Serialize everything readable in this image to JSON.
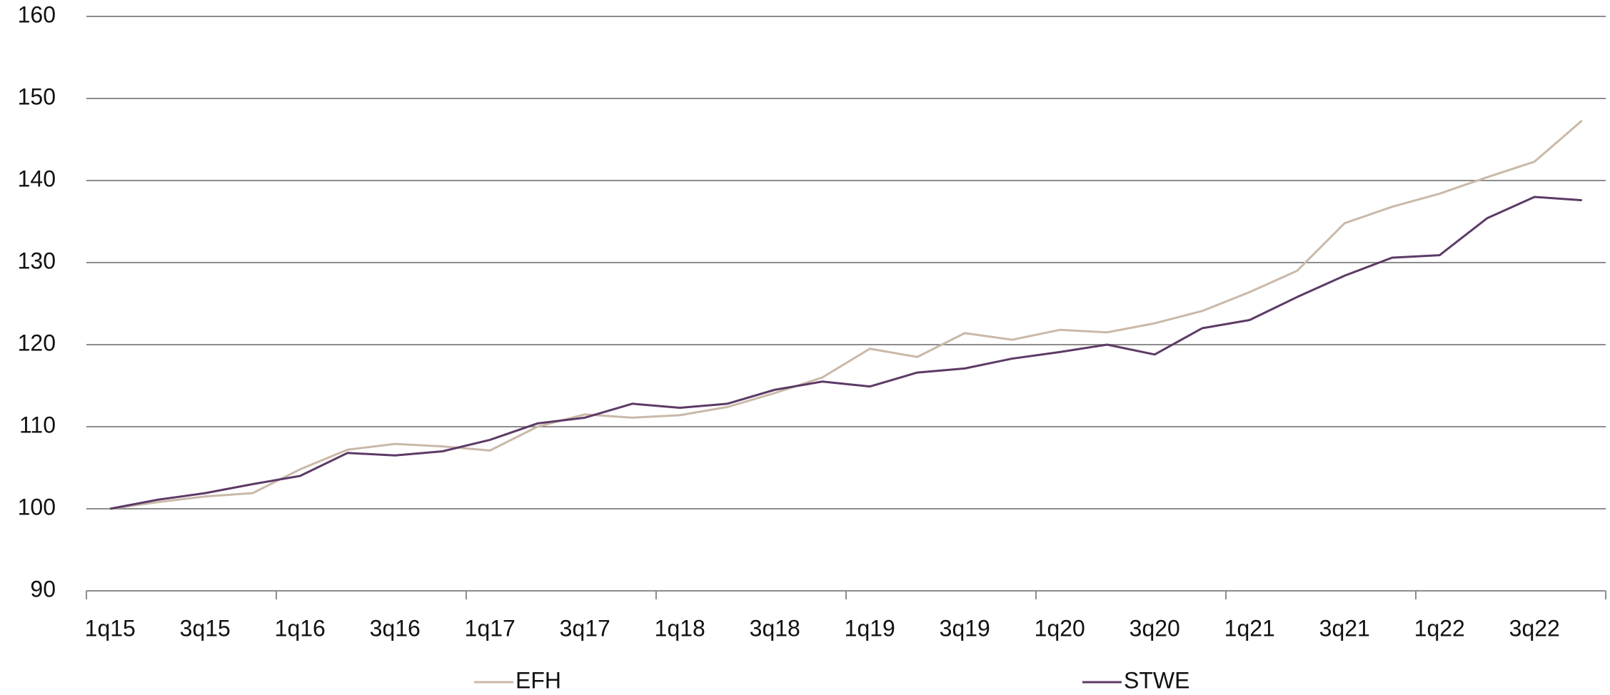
{
  "chart_data": {
    "type": "line",
    "categories": [
      "1q15",
      null,
      "3q15",
      null,
      "1q16",
      null,
      "3q16",
      null,
      "1q17",
      null,
      "3q17",
      null,
      "1q18",
      null,
      "3q18",
      null,
      "1q19",
      null,
      "3q19",
      null,
      "1q20",
      null,
      "3q20",
      null,
      "1q21",
      null,
      "3q21",
      null,
      "1q22",
      null,
      "3q22",
      null
    ],
    "series": [
      {
        "name": "EFH",
        "color": "#c9b9a8",
        "values": [
          100,
          100.8,
          101.5,
          101.9,
          104.8,
          107.2,
          107.9,
          107.6,
          107.1,
          110,
          111.5,
          111.1,
          111.4,
          112.4,
          114.1,
          116,
          119.5,
          118.5,
          121.4,
          120.6,
          121.8,
          121.5,
          122.6,
          124.1,
          126.4,
          129,
          134.8,
          136.8,
          138.4,
          140.4,
          142.3,
          147.3
        ]
      },
      {
        "name": "STWE",
        "color": "#5c3a66",
        "values": [
          100,
          101.1,
          101.9,
          103,
          104,
          106.8,
          106.5,
          107,
          108.4,
          110.4,
          111.1,
          112.8,
          112.3,
          112.8,
          114.5,
          115.5,
          114.9,
          116.6,
          117.1,
          118.3,
          119.1,
          120,
          118.8,
          122,
          123,
          125.8,
          128.4,
          130.6,
          130.9,
          135.4,
          138,
          137.6
        ]
      }
    ],
    "ylim": [
      90,
      160
    ],
    "yticks": [
      90,
      100,
      110,
      120,
      130,
      140,
      150,
      160
    ],
    "grid": true,
    "legend": "bottom"
  }
}
